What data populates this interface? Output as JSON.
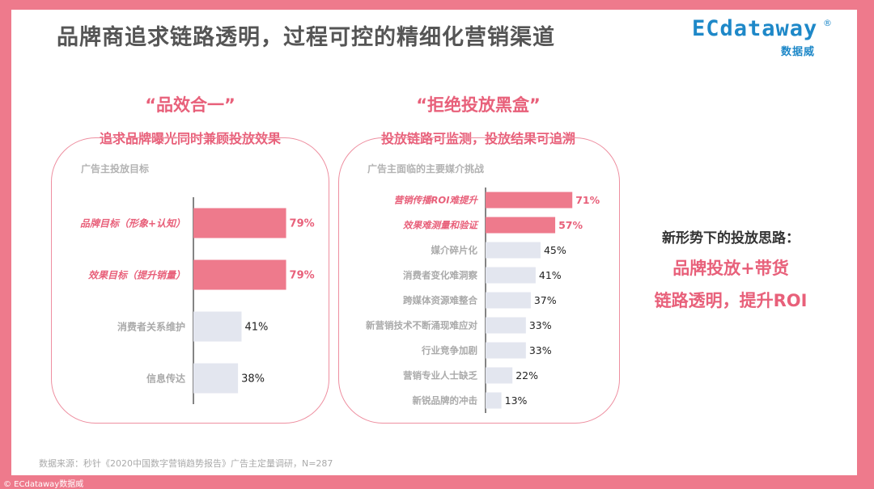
{
  "header": {
    "title": "品牌商追求链路透明，过程可控的精细化营销渠道"
  },
  "logo": {
    "brand": "ECdataway",
    "registered": "®",
    "cn": "数据威"
  },
  "left_panel": {
    "quote": "“品效合一”",
    "subtitle": "追求品牌曝光同时兼顾投放效果"
  },
  "right_panel": {
    "quote": "“拒绝投放黑盒”",
    "subtitle": "投放链路可监测，投放结果可追溯"
  },
  "side": {
    "heading": "新形势下的投放思路：",
    "line1": "品牌投放+带货",
    "line2": "链路透明，提升ROI"
  },
  "footer": {
    "source": "数据来源：秒针《2020中国数字营销趋势报告》广告主定量调研，N=287",
    "copyright": "© ECdataway数据威"
  },
  "colors": {
    "highlight": "#EE7A8C",
    "normal": "#E3E6EF",
    "accent_text": "#E8607A",
    "gray_text": "#AAAAAA"
  },
  "chart_data": [
    {
      "type": "bar",
      "orientation": "horizontal",
      "title": "广告主投放目标",
      "categories": [
        "品牌目标（形象+认知）",
        "效果目标（提升销量）",
        "消费者关系维护",
        "信息传达"
      ],
      "values": [
        79,
        79,
        41,
        38
      ],
      "value_labels": [
        "79%",
        "79%",
        "41%",
        "38%"
      ],
      "highlighted": [
        true,
        true,
        false,
        false
      ],
      "xlim": [
        0,
        100
      ]
    },
    {
      "type": "bar",
      "orientation": "horizontal",
      "title": "广告主面临的主要媒介挑战",
      "categories": [
        "营销传播ROI难提升",
        "效果难测量和验证",
        "媒介碎片化",
        "消费者变化难洞察",
        "跨媒体资源难整合",
        "新营销技术不断涌现难应对",
        "行业竞争加剧",
        "营销专业人士缺乏",
        "新锐品牌的冲击"
      ],
      "values": [
        71,
        57,
        45,
        41,
        37,
        33,
        33,
        22,
        13
      ],
      "value_labels": [
        "71%",
        "57%",
        "45%",
        "41%",
        "37%",
        "33%",
        "33%",
        "22%",
        "13%"
      ],
      "highlighted": [
        true,
        true,
        false,
        false,
        false,
        false,
        false,
        false,
        false
      ],
      "xlim": [
        0,
        100
      ]
    }
  ]
}
